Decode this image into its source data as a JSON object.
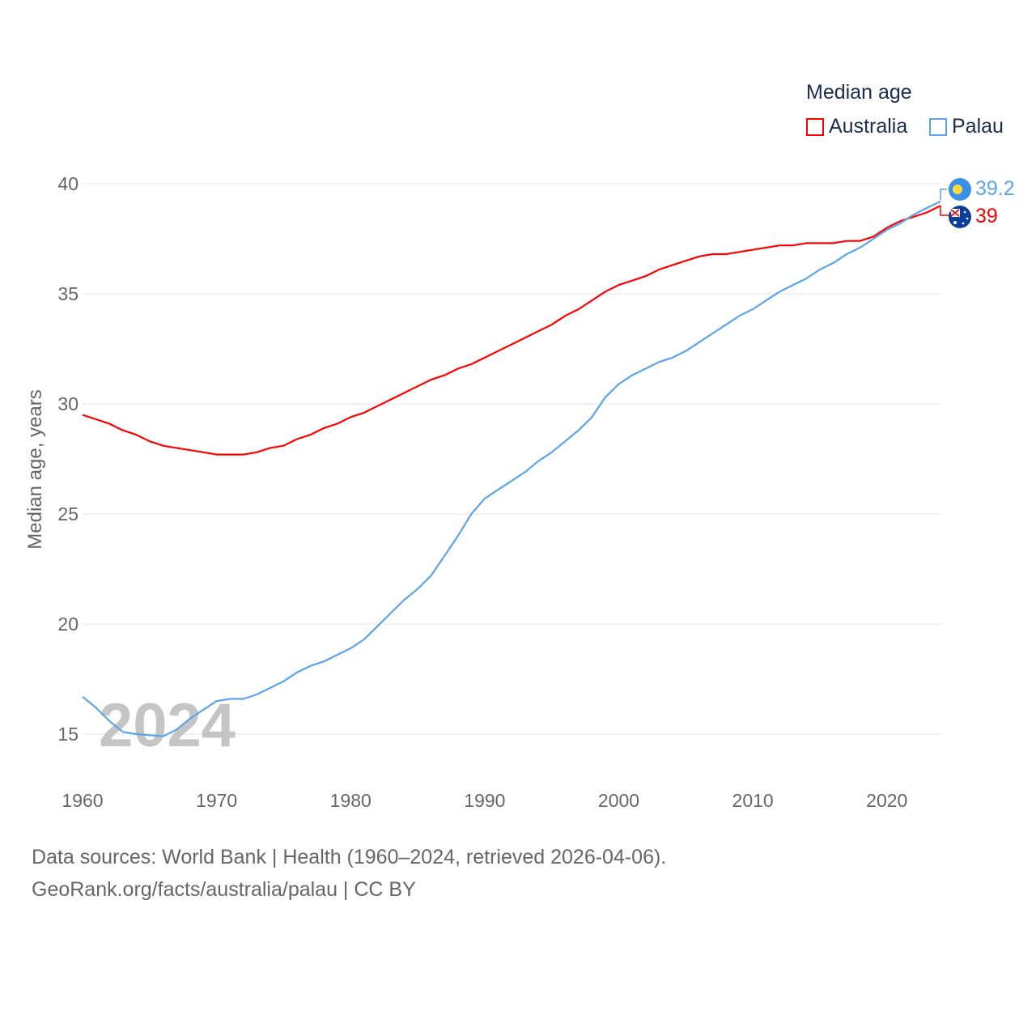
{
  "legend": {
    "title": "Median age",
    "items": [
      {
        "label": "Australia",
        "color": "#ff0000"
      },
      {
        "label": "Palau",
        "color": "#5ba4ea"
      }
    ]
  },
  "year_watermark": "2024",
  "end_labels": {
    "palau": "39.2",
    "australia": "39"
  },
  "footer": {
    "line1": "Data sources: World Bank | Health (1960–2024, retrieved 2026-04-06).",
    "line2": "GeoRank.org/facts/australia/palau | CC BY"
  },
  "chart_data": {
    "type": "line",
    "title": "Median age",
    "xlabel": "",
    "ylabel": "Median age, years",
    "xlim": [
      1960,
      2024
    ],
    "ylim": [
      15,
      40
    ],
    "xticks": [
      "1960",
      "1970",
      "1980",
      "1990",
      "2000",
      "2010",
      "2020"
    ],
    "yticks": [
      "15",
      "20",
      "25",
      "30",
      "35",
      "40"
    ],
    "grid": true,
    "legend_position": "top-right",
    "x": [
      1960,
      1961,
      1962,
      1963,
      1964,
      1965,
      1966,
      1967,
      1968,
      1969,
      1970,
      1971,
      1972,
      1973,
      1974,
      1975,
      1976,
      1977,
      1978,
      1979,
      1980,
      1981,
      1982,
      1983,
      1984,
      1985,
      1986,
      1987,
      1988,
      1989,
      1990,
      1991,
      1992,
      1993,
      1994,
      1995,
      1996,
      1997,
      1998,
      1999,
      2000,
      2001,
      2002,
      2003,
      2004,
      2005,
      2006,
      2007,
      2008,
      2009,
      2010,
      2011,
      2012,
      2013,
      2014,
      2015,
      2016,
      2017,
      2018,
      2019,
      2020,
      2021,
      2022,
      2023,
      2024
    ],
    "series": [
      {
        "name": "Australia",
        "color": "#ff0000",
        "values": [
          29.5,
          29.3,
          29.1,
          28.8,
          28.6,
          28.3,
          28.1,
          28.0,
          27.9,
          27.8,
          27.7,
          27.7,
          27.7,
          27.8,
          28.0,
          28.1,
          28.4,
          28.6,
          28.9,
          29.1,
          29.4,
          29.6,
          29.9,
          30.2,
          30.5,
          30.8,
          31.1,
          31.3,
          31.6,
          31.8,
          32.1,
          32.4,
          32.7,
          33.0,
          33.3,
          33.6,
          34.0,
          34.3,
          34.7,
          35.1,
          35.4,
          35.6,
          35.8,
          36.1,
          36.3,
          36.5,
          36.7,
          36.8,
          36.8,
          36.9,
          37.0,
          37.1,
          37.2,
          37.2,
          37.3,
          37.3,
          37.3,
          37.4,
          37.4,
          37.6,
          38.0,
          38.3,
          38.5,
          38.7,
          39.0
        ]
      },
      {
        "name": "Palau",
        "color": "#5ba4ea",
        "values": [
          16.7,
          16.2,
          15.6,
          15.1,
          15.0,
          14.95,
          14.9,
          15.2,
          15.7,
          16.1,
          16.5,
          16.6,
          16.6,
          16.8,
          17.1,
          17.4,
          17.8,
          18.1,
          18.3,
          18.6,
          18.9,
          19.3,
          19.9,
          20.5,
          21.1,
          21.6,
          22.2,
          23.1,
          24.0,
          25.0,
          25.7,
          26.1,
          26.5,
          26.9,
          27.4,
          27.8,
          28.3,
          28.8,
          29.4,
          30.3,
          30.9,
          31.3,
          31.6,
          31.9,
          32.1,
          32.4,
          32.8,
          33.2,
          33.6,
          34.0,
          34.3,
          34.7,
          35.1,
          35.4,
          35.7,
          36.1,
          36.4,
          36.8,
          37.1,
          37.5,
          37.9,
          38.2,
          38.6,
          38.9,
          39.2
        ]
      }
    ]
  }
}
